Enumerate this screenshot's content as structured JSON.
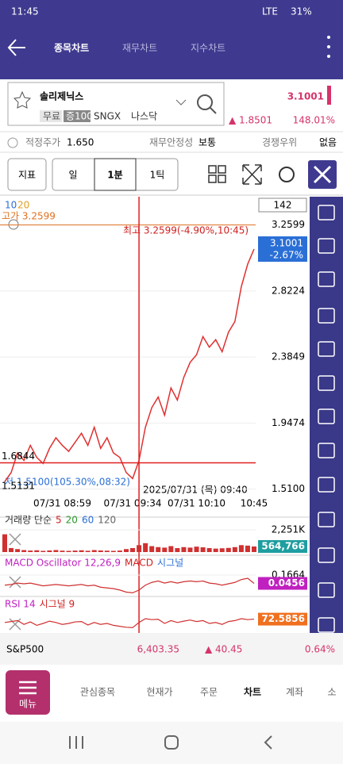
{
  "status": {
    "time": "11:45",
    "network": "LTE",
    "battery": "31%"
  },
  "header": {
    "tabs": [
      "종목차트",
      "재무차트",
      "지수차트"
    ]
  },
  "stock": {
    "name": "솔리제닉스",
    "badges": [
      "무료",
      "증100"
    ],
    "ticker": "SNGX",
    "market": "나스닥",
    "price": "3.1001",
    "change": "▲ 1.8501",
    "change_pct": "148.01%"
  },
  "info": {
    "fair_label": "적정주가",
    "fair_value": "1.650",
    "stability_label": "재무안정성",
    "stability_value": "보통",
    "moat_label": "경쟁우위",
    "moat_value": "없음"
  },
  "toolbar": {
    "indicator": "지표",
    "period": "일",
    "minute": "1분",
    "tick": "1틱"
  },
  "chart": {
    "type": "line",
    "color": "#e03030",
    "count_box": "142",
    "ma_legend": [
      "10",
      "20"
    ],
    "high_label": "고가 3.2599",
    "max_note": "최고 3.2599(-4.90%,10:45)",
    "current_change": "-2.67%",
    "crosshair_price": 1.6844,
    "low_price": 1.5131,
    "min_note": "저 1.5100(105.30%,08:32)",
    "crosshair_time": "2025/07/31 (목) 09:40",
    "categories": [
      null,
      null,
      null,
      null,
      null,
      null,
      null,
      null,
      null,
      "07/31 08:59",
      null,
      null,
      null,
      null,
      null,
      null,
      null,
      null,
      null,
      null,
      "07/31 09:34",
      null,
      null,
      null,
      null,
      null,
      null,
      null,
      null,
      null,
      "07/31 10:10",
      null,
      null,
      null,
      null,
      null,
      null,
      null,
      null,
      "10:45"
    ],
    "values": [
      1.56,
      1.62,
      1.75,
      1.7,
      1.8,
      1.72,
      1.68,
      1.78,
      1.85,
      1.8,
      1.76,
      1.82,
      1.88,
      1.8,
      1.92,
      1.78,
      1.85,
      1.75,
      1.72,
      1.62,
      1.58,
      1.7,
      1.92,
      2.05,
      2.12,
      2.0,
      2.18,
      2.1,
      2.25,
      2.35,
      2.4,
      2.52,
      2.45,
      2.5,
      2.42,
      2.55,
      2.62,
      2.85,
      3.0,
      3.1001
    ],
    "ylim": [
      1.44,
      3.41
    ],
    "yticks": [
      3.2599,
      2.8224,
      2.3849,
      1.9474,
      {
        "value": 1.51,
        "label": "1.5100"
      }
    ]
  },
  "volume": {
    "title_parts": [
      "거래량 단순",
      "5",
      "20",
      "60",
      "120"
    ],
    "color": "#d03030",
    "values": [
      1800000,
      400000,
      300000,
      200000,
      150000,
      180000,
      120000,
      160000,
      200000,
      140000,
      120000,
      150000,
      180000,
      130000,
      200000,
      160000,
      140000,
      120000,
      150000,
      300000,
      400000,
      700000,
      900000,
      600000,
      500000,
      450000,
      600000,
      400000,
      500000,
      450000,
      550000,
      480000,
      400000,
      350000,
      380000,
      420000,
      500000,
      700000,
      650000,
      564766
    ],
    "last_label": "564,766",
    "ylim": [
      0,
      2251000
    ],
    "yticks": [
      {
        "value": 2251000,
        "label": "2,251K"
      }
    ]
  },
  "macd": {
    "title_parts": [
      "MACD Oscillator 12,26,9",
      "MACD",
      "시그널"
    ],
    "color": "#d03030",
    "values": [
      0.02,
      0.03,
      0.05,
      0.04,
      0.05,
      0.03,
      0.01,
      0.02,
      0.03,
      0.02,
      0.01,
      0.02,
      0.03,
      0.01,
      0.02,
      -0.01,
      -0.02,
      -0.03,
      -0.05,
      -0.08,
      -0.09,
      -0.05,
      0.02,
      0.06,
      0.08,
      0.05,
      0.07,
      0.05,
      0.07,
      0.08,
      0.07,
      0.08,
      0.05,
      0.04,
      0.02,
      0.04,
      0.06,
      0.1,
      0.12,
      0.0456
    ],
    "ylim": [
      -0.12,
      0.2
    ],
    "yticks": [
      0.1664
    ]
  },
  "rsi": {
    "title_parts": [
      "RSI 14",
      "시그널 9"
    ],
    "color": "#d03030",
    "values": [
      55,
      60,
      65,
      45,
      58,
      40,
      50,
      62,
      55,
      45,
      50,
      58,
      60,
      42,
      55,
      45,
      50,
      40,
      35,
      30,
      28,
      55,
      75,
      70,
      72,
      50,
      65,
      55,
      62,
      68,
      60,
      65,
      50,
      55,
      45,
      60,
      65,
      75,
      70,
      72.5856
    ],
    "ylim": [
      0,
      100
    ]
  },
  "index": {
    "name": "S&P500",
    "value": "6,403.35",
    "change": "▲ 40.45",
    "pct": "0.64%"
  },
  "nav": {
    "menu": "메뉴",
    "items": [
      "관심종목",
      "현재가",
      "주문",
      "차트",
      "계좌",
      "소"
    ]
  }
}
